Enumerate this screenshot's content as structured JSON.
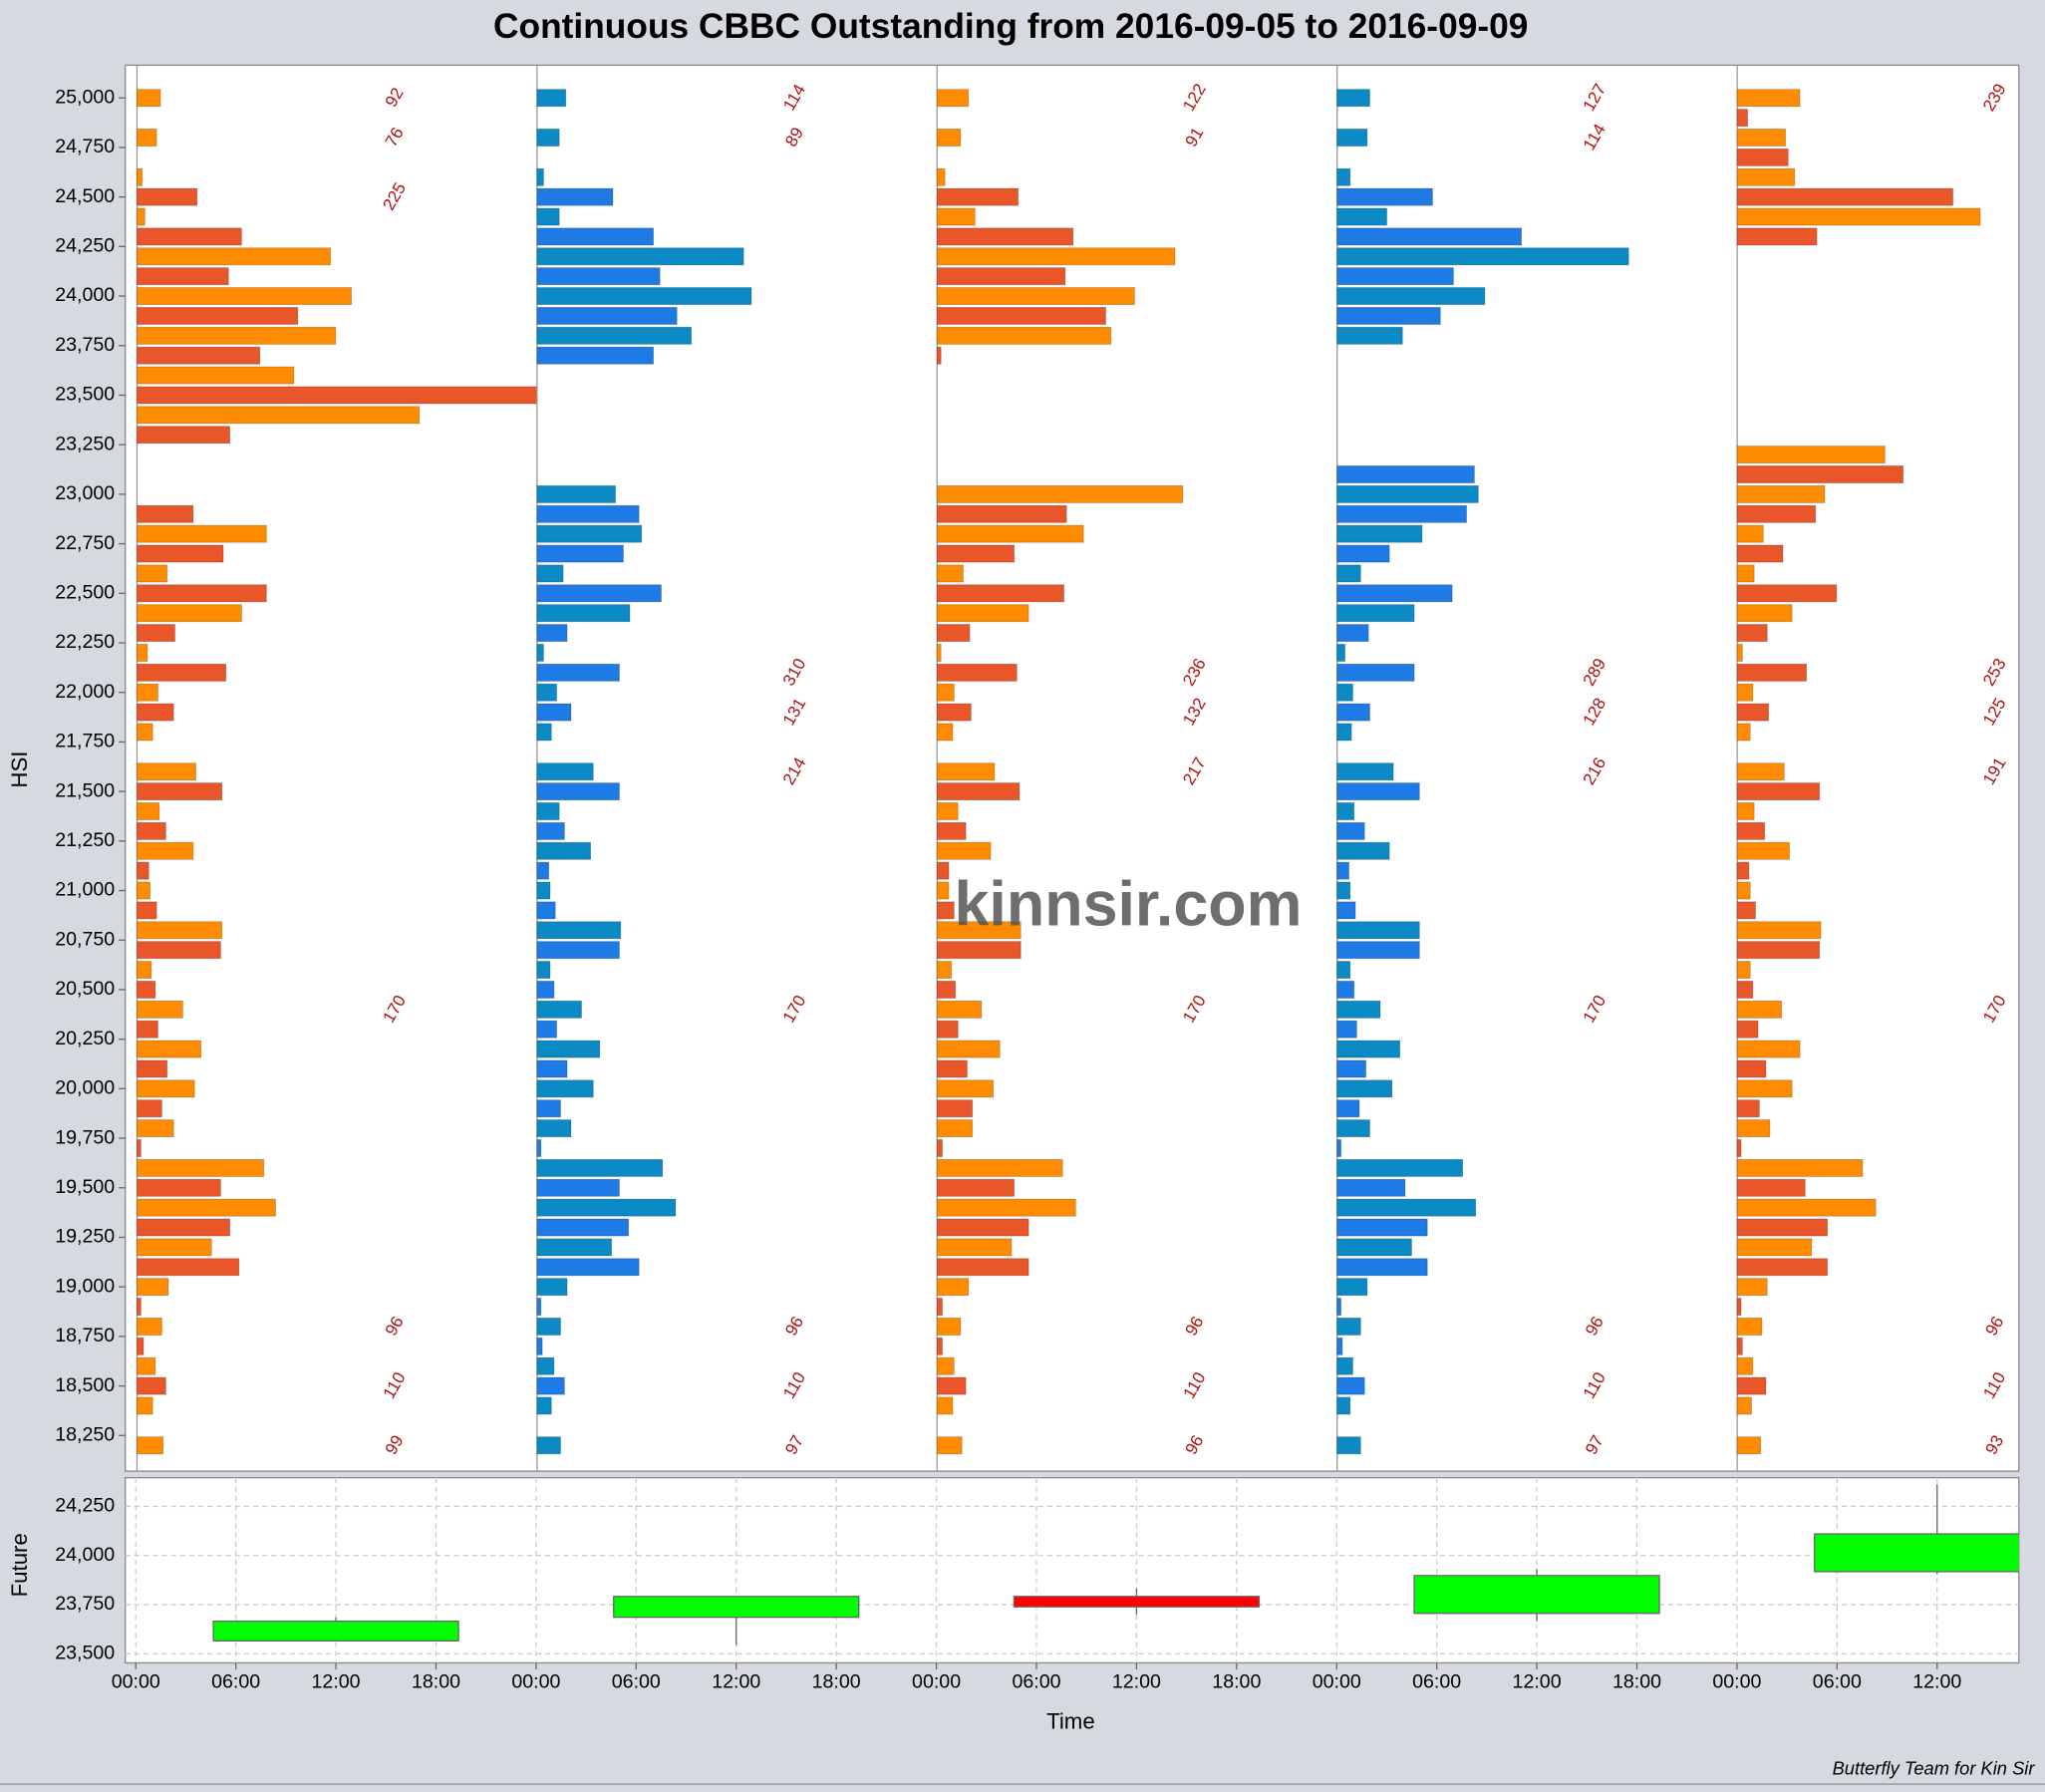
{
  "footer": "Butterfly Team for Kin Sir",
  "chart_data": [
    {
      "type": "bar",
      "orientation": "horizontal",
      "title": "Continuous CBBC Outstanding from 2016-09-05 to 2016-09-09",
      "y_label": "HSI",
      "watermark": "kinnsir.com",
      "xlim": [
        0,
        306
      ],
      "ylim": [
        18070,
        25165
      ],
      "yticks": [
        {
          "value": 18250,
          "label": "18,250"
        },
        {
          "value": 18500,
          "label": "18,500"
        },
        {
          "value": 18750,
          "label": "18,750"
        },
        {
          "value": 19000,
          "label": "19,000"
        },
        {
          "value": 19250,
          "label": "19,250"
        },
        {
          "value": 19500,
          "label": "19,500"
        },
        {
          "value": 19750,
          "label": "19,750"
        },
        {
          "value": 20000,
          "label": "20,000"
        },
        {
          "value": 20250,
          "label": "20,250"
        },
        {
          "value": 20500,
          "label": "20,500"
        },
        {
          "value": 20750,
          "label": "20,750"
        },
        {
          "value": 21000,
          "label": "21,000"
        },
        {
          "value": 21250,
          "label": "21,250"
        },
        {
          "value": 21500,
          "label": "21,500"
        },
        {
          "value": 21750,
          "label": "21,750"
        },
        {
          "value": 22000,
          "label": "22,000"
        },
        {
          "value": 22250,
          "label": "22,250"
        },
        {
          "value": 22500,
          "label": "22,500"
        },
        {
          "value": 22750,
          "label": "22,750"
        },
        {
          "value": 23000,
          "label": "23,000"
        },
        {
          "value": 23250,
          "label": "23,250"
        },
        {
          "value": 23500,
          "label": "23,500"
        },
        {
          "value": 23750,
          "label": "23,750"
        },
        {
          "value": 24000,
          "label": "24,000"
        },
        {
          "value": 24250,
          "label": "24,250"
        },
        {
          "value": 24500,
          "label": "24,500"
        },
        {
          "value": 24750,
          "label": "24,750"
        },
        {
          "value": 25000,
          "label": "25,000"
        }
      ],
      "panels": [
        {
          "colors": [
            "#ff8c00",
            "#e8562a"
          ],
          "levels": [
            25000,
            24800,
            24600,
            24500,
            24400,
            24300,
            24200,
            24100,
            24000,
            23900,
            23800,
            23700,
            23600,
            23500,
            23400,
            23300,
            22900,
            22800,
            22700,
            22600,
            22500,
            22400,
            22300,
            22200,
            22100,
            22000,
            21900,
            21800,
            21600,
            21500,
            21400,
            21300,
            21200,
            21100,
            21000,
            20900,
            20800,
            20700,
            20600,
            20500,
            20400,
            20300,
            20200,
            20100,
            20000,
            19900,
            19800,
            19700,
            19600,
            19500,
            19400,
            19300,
            19200,
            19100,
            19000,
            18900,
            18800,
            18700,
            18600,
            18500,
            18400,
            18200
          ],
          "values": [
            18,
            15,
            4,
            46,
            6,
            80,
            148,
            70,
            164,
            123,
            152,
            94,
            120,
            306,
            216,
            71,
            43,
            99,
            66,
            23,
            99,
            80,
            29,
            8,
            68,
            16,
            28,
            12,
            45,
            65,
            17,
            22,
            43,
            9,
            10,
            15,
            65,
            64,
            11,
            14,
            35,
            16,
            49,
            23,
            44,
            19,
            28,
            3,
            97,
            64,
            106,
            71,
            57,
            78,
            24,
            3,
            19,
            5,
            14,
            22,
            12,
            20
          ],
          "labels": [
            {
              "level": 25000,
              "text": "92"
            },
            {
              "level": 24800,
              "text": "76"
            },
            {
              "level": 24500,
              "text": "225"
            },
            {
              "level": 20400,
              "text": "170"
            },
            {
              "level": 18800,
              "text": "96"
            },
            {
              "level": 18500,
              "text": "110"
            },
            {
              "level": 18200,
              "text": "99"
            }
          ]
        },
        {
          "colors": [
            "#0b8ac6",
            "#1e7be6"
          ],
          "levels": [
            25000,
            24800,
            24600,
            24500,
            24400,
            24300,
            24200,
            24100,
            24000,
            23900,
            23800,
            23700,
            23000,
            22900,
            22800,
            22700,
            22600,
            22500,
            22400,
            22300,
            22200,
            22100,
            22000,
            21900,
            21800,
            21600,
            21500,
            21400,
            21300,
            21200,
            21100,
            21000,
            20900,
            20800,
            20700,
            20600,
            20500,
            20400,
            20300,
            20200,
            20100,
            20000,
            19900,
            19800,
            19700,
            19600,
            19500,
            19400,
            19300,
            19200,
            19100,
            19000,
            18900,
            18800,
            18700,
            18600,
            18500,
            18400,
            18200
          ],
          "values": [
            22,
            17,
            5,
            58,
            17,
            89,
            158,
            94,
            164,
            107,
            118,
            89,
            60,
            78,
            80,
            66,
            20,
            95,
            71,
            23,
            5,
            63,
            15,
            26,
            11,
            43,
            63,
            17,
            21,
            41,
            9,
            10,
            14,
            64,
            63,
            10,
            13,
            34,
            15,
            48,
            23,
            43,
            18,
            26,
            3,
            96,
            63,
            106,
            70,
            57,
            78,
            23,
            3,
            18,
            4,
            13,
            21,
            11,
            18
          ],
          "labels": [
            {
              "level": 25000,
              "text": "114"
            },
            {
              "level": 24800,
              "text": "89"
            },
            {
              "level": 22100,
              "text": "310"
            },
            {
              "level": 21900,
              "text": "131"
            },
            {
              "level": 21600,
              "text": "214"
            },
            {
              "level": 20400,
              "text": "170"
            },
            {
              "level": 18800,
              "text": "96"
            },
            {
              "level": 18500,
              "text": "110"
            },
            {
              "level": 18200,
              "text": "97"
            }
          ]
        },
        {
          "colors": [
            "#ff8c00",
            "#e8562a"
          ],
          "levels": [
            25000,
            24800,
            24600,
            24500,
            24400,
            24300,
            24200,
            24100,
            24000,
            23900,
            23800,
            23700,
            23000,
            22900,
            22800,
            22700,
            22600,
            22500,
            22400,
            22300,
            22200,
            22100,
            22000,
            21900,
            21800,
            21600,
            21500,
            21400,
            21300,
            21200,
            21100,
            21000,
            20900,
            20800,
            20700,
            20600,
            20500,
            20400,
            20300,
            20200,
            20100,
            20000,
            19900,
            19800,
            19700,
            19600,
            19500,
            19400,
            19300,
            19200,
            19100,
            19000,
            18900,
            18800,
            18700,
            18600,
            18500,
            18400,
            18200
          ],
          "values": [
            24,
            18,
            6,
            62,
            29,
            104,
            182,
            98,
            151,
            129,
            133,
            3,
            188,
            99,
            112,
            59,
            20,
            97,
            70,
            25,
            3,
            61,
            13,
            26,
            12,
            44,
            63,
            16,
            22,
            41,
            9,
            9,
            13,
            64,
            64,
            11,
            14,
            34,
            16,
            48,
            23,
            43,
            27,
            27,
            4,
            96,
            59,
            106,
            70,
            57,
            70,
            24,
            4,
            18,
            4,
            13,
            22,
            12,
            19
          ],
          "labels": [
            {
              "level": 25000,
              "text": "122"
            },
            {
              "level": 24800,
              "text": "91"
            },
            {
              "level": 22100,
              "text": "236"
            },
            {
              "level": 21900,
              "text": "132"
            },
            {
              "level": 21600,
              "text": "217"
            },
            {
              "level": 20400,
              "text": "170"
            },
            {
              "level": 18800,
              "text": "96"
            },
            {
              "level": 18500,
              "text": "110"
            },
            {
              "level": 18200,
              "text": "96"
            }
          ]
        },
        {
          "colors": [
            "#0b8ac6",
            "#1e7be6"
          ],
          "levels": [
            25000,
            24800,
            24600,
            24500,
            24400,
            24300,
            24200,
            24100,
            24000,
            23900,
            23800,
            23100,
            23000,
            22900,
            22800,
            22700,
            22600,
            22500,
            22400,
            22300,
            22200,
            22100,
            22000,
            21900,
            21800,
            21600,
            21500,
            21400,
            21300,
            21200,
            21100,
            21000,
            20900,
            20800,
            20700,
            20600,
            20500,
            20400,
            20300,
            20200,
            20100,
            20000,
            19900,
            19800,
            19700,
            19600,
            19500,
            19400,
            19300,
            19200,
            19100,
            19000,
            18900,
            18800,
            18700,
            18600,
            18500,
            18400,
            18200
          ],
          "values": [
            25,
            23,
            10,
            73,
            38,
            141,
            223,
            89,
            113,
            79,
            50,
            105,
            108,
            99,
            65,
            40,
            18,
            88,
            59,
            24,
            6,
            59,
            12,
            25,
            11,
            43,
            63,
            13,
            21,
            40,
            9,
            10,
            14,
            63,
            63,
            10,
            13,
            33,
            15,
            48,
            22,
            42,
            17,
            25,
            3,
            96,
            52,
            106,
            69,
            57,
            69,
            23,
            3,
            18,
            4,
            12,
            21,
            10,
            18
          ],
          "labels": [
            {
              "level": 25000,
              "text": "127"
            },
            {
              "level": 24800,
              "text": "114"
            },
            {
              "level": 22100,
              "text": "289"
            },
            {
              "level": 21900,
              "text": "128"
            },
            {
              "level": 21600,
              "text": "216"
            },
            {
              "level": 20400,
              "text": "170"
            },
            {
              "level": 18800,
              "text": "96"
            },
            {
              "level": 18500,
              "text": "110"
            },
            {
              "level": 18200,
              "text": "97"
            }
          ]
        },
        {
          "colors": [
            "#ff8c00",
            "#e8562a"
          ],
          "levels": [
            25000,
            24900,
            24800,
            24700,
            24600,
            24500,
            24400,
            24300,
            23200,
            23100,
            23000,
            22900,
            22800,
            22700,
            22600,
            22500,
            22400,
            22300,
            22200,
            22100,
            22000,
            21900,
            21800,
            21600,
            21500,
            21400,
            21300,
            21200,
            21100,
            21000,
            20900,
            20800,
            20700,
            20600,
            20500,
            20400,
            20300,
            20200,
            20100,
            20000,
            19900,
            19800,
            19700,
            19600,
            19500,
            19400,
            19300,
            19200,
            19100,
            19000,
            18900,
            18800,
            18700,
            18600,
            18500,
            18400,
            18200
          ],
          "values": [
            48,
            8,
            37,
            39,
            44,
            165,
            186,
            61,
            113,
            127,
            67,
            60,
            20,
            35,
            13,
            76,
            42,
            23,
            4,
            53,
            12,
            24,
            10,
            36,
            63,
            13,
            21,
            40,
            9,
            10,
            14,
            64,
            63,
            10,
            12,
            34,
            16,
            48,
            22,
            42,
            17,
            25,
            3,
            96,
            52,
            106,
            69,
            57,
            69,
            23,
            3,
            19,
            4,
            12,
            22,
            11,
            18
          ],
          "labels": [
            {
              "level": 25000,
              "text": "239"
            },
            {
              "level": 22100,
              "text": "253"
            },
            {
              "level": 21900,
              "text": "125"
            },
            {
              "level": 21600,
              "text": "191"
            },
            {
              "level": 20400,
              "text": "170"
            },
            {
              "level": 18800,
              "text": "96"
            },
            {
              "level": 18500,
              "text": "110"
            },
            {
              "level": 18200,
              "text": "93"
            }
          ]
        }
      ]
    },
    {
      "type": "candlestick",
      "x_label": "Time",
      "y_label": "Future",
      "x": [
        12,
        36,
        60,
        84,
        108
      ],
      "open": [
        23566,
        23686,
        23792,
        23706,
        23918
      ],
      "high": [
        23686,
        23792,
        23832,
        23931,
        24363
      ],
      "low": [
        23566,
        23546,
        23699,
        23666,
        23905
      ],
      "close": [
        23666,
        23792,
        23739,
        23898,
        24110
      ],
      "up_color": "#00ff00",
      "down_color": "#ff0000",
      "xlim": [
        -0.63,
        112.9
      ],
      "ylim": [
        23454,
        24396
      ],
      "grid": true,
      "yticks": [
        {
          "value": 23500,
          "label": "23,500"
        },
        {
          "value": 23750,
          "label": "23,750"
        },
        {
          "value": 24000,
          "label": "24,000"
        },
        {
          "value": 24250,
          "label": "24,250"
        }
      ],
      "xticks": [
        {
          "value": 0,
          "label": "00:00"
        },
        {
          "value": 6,
          "label": "06:00"
        },
        {
          "value": 12,
          "label": "12:00"
        },
        {
          "value": 18,
          "label": "18:00"
        },
        {
          "value": 24,
          "label": "00:00"
        },
        {
          "value": 30,
          "label": "06:00"
        },
        {
          "value": 36,
          "label": "12:00"
        },
        {
          "value": 42,
          "label": "18:00"
        },
        {
          "value": 48,
          "label": "00:00"
        },
        {
          "value": 54,
          "label": "06:00"
        },
        {
          "value": 60,
          "label": "12:00"
        },
        {
          "value": 66,
          "label": "18:00"
        },
        {
          "value": 72,
          "label": "00:00"
        },
        {
          "value": 78,
          "label": "06:00"
        },
        {
          "value": 84,
          "label": "12:00"
        },
        {
          "value": 90,
          "label": "18:00"
        },
        {
          "value": 96,
          "label": "00:00"
        },
        {
          "value": 102,
          "label": "06:00"
        },
        {
          "value": 108,
          "label": "12:00"
        }
      ]
    }
  ]
}
